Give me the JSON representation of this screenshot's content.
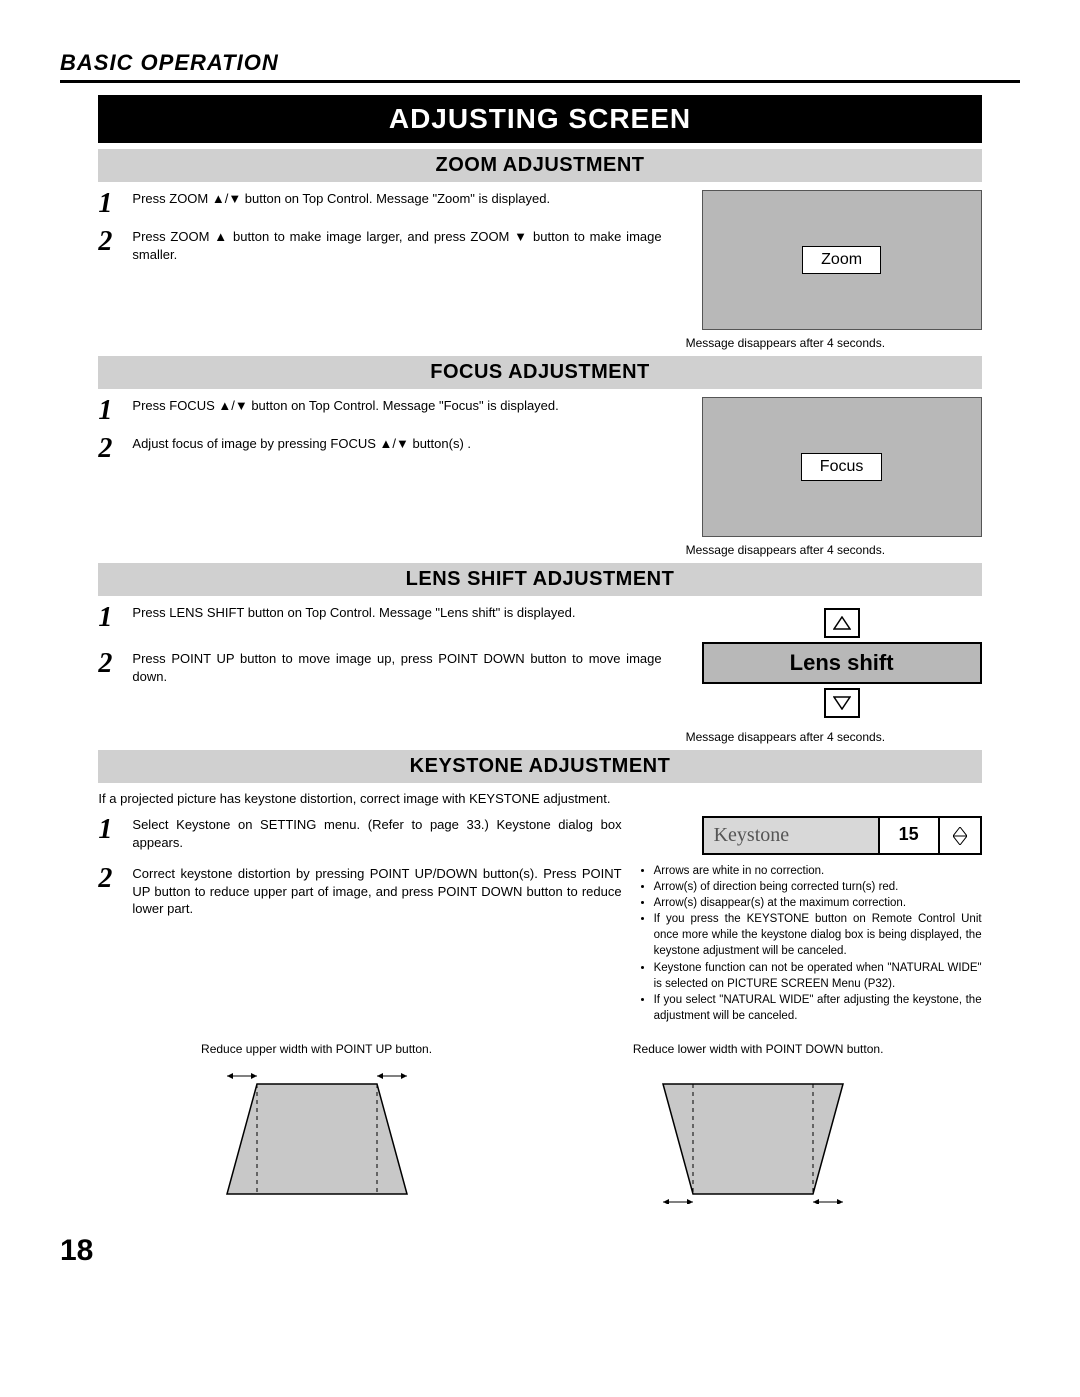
{
  "header": "BASIC OPERATION",
  "title": "ADJUSTING SCREEN",
  "page_number": "18",
  "sections": {
    "zoom": {
      "heading": "ZOOM ADJUSTMENT",
      "step1": "Press ZOOM ▲/▼ button on Top Control. Message \"Zoom\" is displayed.",
      "step2": "Press ZOOM ▲ button to make image larger, and press ZOOM ▼ button to make image smaller.",
      "box_label": "Zoom",
      "caption": "Message disappears after 4 seconds."
    },
    "focus": {
      "heading": "FOCUS ADJUSTMENT",
      "step1": "Press FOCUS ▲/▼ button on Top Control. Message \"Focus\" is displayed.",
      "step2": "Adjust focus of image by pressing FOCUS ▲/▼  button(s) .",
      "box_label": "Focus",
      "caption": "Message disappears after 4 seconds."
    },
    "lens": {
      "heading": "LENS SHIFT ADJUSTMENT",
      "step1": "Press LENS SHIFT button on Top Control. Message \"Lens shift\" is displayed.",
      "step2": "Press POINT UP button to move image up, press POINT DOWN button to move image down.",
      "box_label": "Lens shift",
      "caption": "Message disappears after 4 seconds."
    },
    "keystone": {
      "heading": "KEYSTONE ADJUSTMENT",
      "intro": "If a projected picture has keystone distortion, correct image with KEYSTONE adjustment.",
      "step1": "Select Keystone on SETTING menu. (Refer to page 33.) Keystone dialog box appears.",
      "step2": "Correct keystone distortion by pressing POINT UP/DOWN button(s). Press POINT UP button to reduce upper part of image, and press  POINT DOWN button to reduce lower part.",
      "box_label": "Keystone",
      "box_value": "15",
      "bullets": [
        "Arrows are white in no correction.",
        "Arrow(s) of direction being corrected turn(s) red.",
        "Arrow(s) disappear(s) at the maximum correction.",
        "If you press the KEYSTONE button on Remote Control Unit once more while the keystone dialog box is being displayed, the keystone adjustment will be canceled.",
        "Keystone function can not be operated when \"NATURAL WIDE\" is selected on PICTURE SCREEN Menu (P32).",
        "If you select \"NATURAL WIDE\" after adjusting the keystone, the adjustment will be canceled."
      ],
      "trap1_caption": "Reduce upper width with POINT UP button.",
      "trap2_caption": "Reduce lower width with POINT DOWN button."
    }
  }
}
